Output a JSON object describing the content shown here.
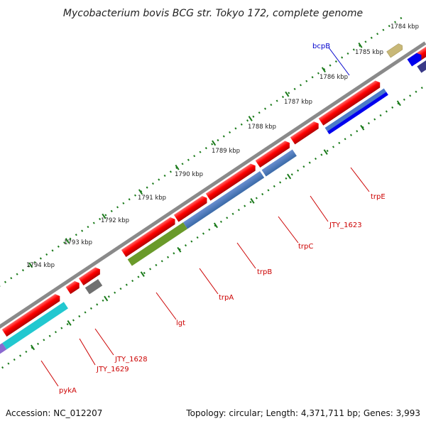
{
  "title": "Mycobacterium bovis BCG str. Tokyo 172, complete genome",
  "footer": {
    "accession": "Accession: NC_012207",
    "summary": "Topology: circular; Length: 4,371,711 bp; Genes: 3,993"
  },
  "colors": {
    "backbone": "#808080",
    "tick_dots": "#1a7a1a",
    "gene_label": "#cc0000",
    "highlight_label": "#0000cc",
    "forward_gene": "#ff0000"
  },
  "scale": {
    "unit": "kbp",
    "labels": [
      "1784 kbp",
      "1785 kbp",
      "1786 kbp",
      "1787 kbp",
      "1788 kbp",
      "1789 kbp",
      "1790 kbp",
      "1791 kbp",
      "1792 kbp",
      "1793 kbp",
      "1794 kbp"
    ]
  },
  "gene_labels": [
    {
      "name": "bcpB",
      "color": "#0000cc"
    },
    {
      "name": "trpE",
      "color": "#cc0000"
    },
    {
      "name": "JTY_1623",
      "color": "#cc0000"
    },
    {
      "name": "trpC",
      "color": "#cc0000"
    },
    {
      "name": "trpB",
      "color": "#cc0000"
    },
    {
      "name": "trpA",
      "color": "#cc0000"
    },
    {
      "name": "lgt",
      "color": "#cc0000"
    },
    {
      "name": "JTY_1628",
      "color": "#cc0000"
    },
    {
      "name": "JTY_1629",
      "color": "#cc0000"
    },
    {
      "name": "pykA",
      "color": "#cc0000"
    }
  ]
}
